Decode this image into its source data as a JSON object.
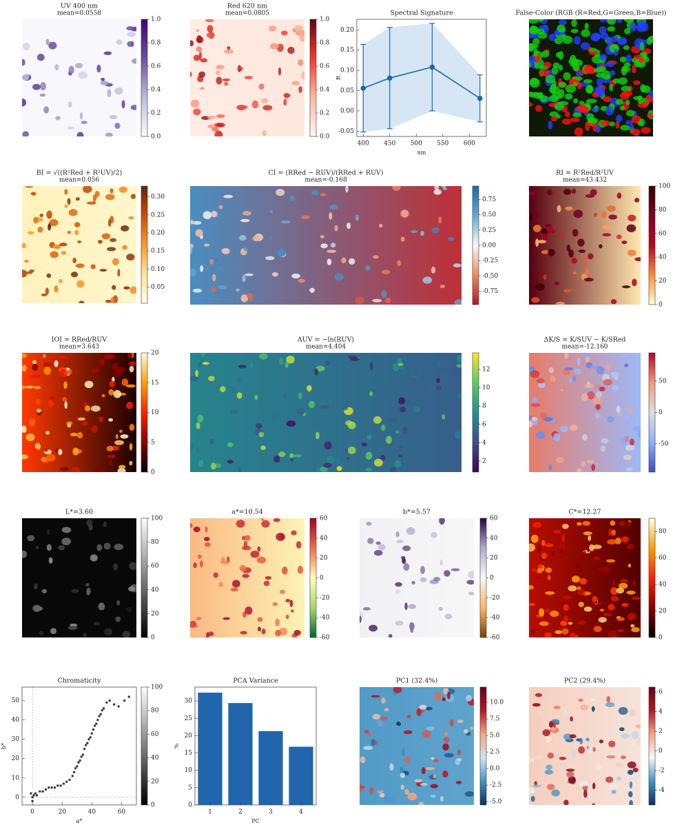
{
  "chart_data": [
    {
      "type": "heatmap",
      "title": "UV 400 nm",
      "subtitle": "mean=0.0558",
      "colormap": [
        "#fcfbfd",
        "#bcbddc",
        "#6a51a3",
        "#3f007d"
      ],
      "cbar_lim": [
        0,
        1
      ],
      "cbar_ticks": [
        {
          "value": 0,
          "label": "0.0"
        },
        0.2,
        0.4,
        0.6,
        0.8,
        {
          "value": 1,
          "label": "1.0"
        }
      ]
    },
    {
      "type": "heatmap",
      "title": "Red 620 nm",
      "subtitle": "mean=0.0805",
      "colormap": [
        "#fff5f0",
        "#fcbba1",
        "#ef3b2c",
        "#67000d"
      ],
      "cbar_lim": [
        0,
        1
      ],
      "cbar_ticks": [
        {
          "value": 0,
          "label": "0.0"
        },
        0.2,
        0.4,
        0.6,
        0.8,
        {
          "value": 1,
          "label": "1.0"
        }
      ]
    },
    {
      "type": "line",
      "title": "Spectral Signature",
      "x_label": "nm",
      "y_label": "R",
      "color": "#2166ac",
      "band_color": "#c6dbef",
      "x": [
        400,
        450,
        530,
        620
      ],
      "values": [
        0.056,
        0.081,
        0.108,
        0.031
      ],
      "errors": [
        0.108,
        0.125,
        0.108,
        0.058
      ],
      "xlim": [
        388,
        632
      ],
      "xticks": [
        400,
        450,
        500,
        550,
        600
      ],
      "ylim": [
        -0.063,
        0.226
      ],
      "yticks": [
        -0.05,
        {
          "value": 0,
          "label": "0.00"
        },
        0.05,
        {
          "value": 0.1,
          "label": "0.10"
        },
        0.15,
        {
          "value": 0.2,
          "label": "0.20"
        }
      ]
    },
    {
      "type": "rgb-image",
      "title": "False-Color (RGB (R=Red,G=Green,B=Blue))",
      "colors": [
        "#ff1010",
        "#10d010",
        "#2040ff"
      ]
    },
    {
      "type": "heatmap",
      "title": "BI = √((R²Red + R²UV)/2)",
      "subtitle": "mean=0.056",
      "colormap": [
        "#ffffe5",
        "#fee391",
        "#fe9929",
        "#cc4c02",
        "#662506"
      ],
      "cbar_lim": [
        0.005,
        0.33
      ],
      "cbar_ticks": [
        0.05,
        {
          "value": 0.1,
          "label": "0.10"
        },
        0.15,
        {
          "value": 0.2,
          "label": "0.20"
        },
        0.25,
        {
          "value": 0.3,
          "label": "0.30"
        }
      ]
    },
    {
      "type": "heatmap",
      "title": "CI = (RRed − RUV)/(RRed + RUV)",
      "subtitle": "mean=-0.168",
      "colormap": [
        "#b2182b",
        "#ef8a62",
        "#f7f7f7",
        "#67a9cf",
        "#2166ac"
      ],
      "cbar_lim": [
        -0.97,
        0.97
      ],
      "cbar_ticks": [
        -0.75,
        {
          "value": -0.5,
          "label": "-0.50"
        },
        -0.25,
        {
          "value": 0,
          "label": "0.00"
        },
        0.25,
        {
          "value": 0.5,
          "label": "0.50"
        },
        0.75
      ]
    },
    {
      "type": "heatmap",
      "title": "RI = R²Red/R²UV",
      "subtitle": "mean=43.432",
      "colormap": [
        "#ffffcc",
        "#fd8d3c",
        "#bd0026",
        "#800026",
        "#3a0000"
      ],
      "cbar_lim": [
        0,
        100
      ],
      "cbar_ticks": [
        0,
        20,
        40,
        60,
        80,
        100
      ]
    },
    {
      "type": "heatmap",
      "title": "IOI = RRed/RUV",
      "subtitle": "mean=3.643",
      "colormap": [
        "#000000",
        "#8b0000",
        "#ff2000",
        "#ffa000",
        "#ffffe0"
      ],
      "cbar_lim": [
        0,
        20
      ],
      "cbar_ticks": [
        0,
        5,
        10,
        15,
        20
      ]
    },
    {
      "type": "heatmap",
      "title": "AUV = −ln(RUV)",
      "subtitle": "mean=4.404",
      "colormap": [
        "#440154",
        "#3b528b",
        "#21918c",
        "#5ec962",
        "#fde725"
      ],
      "cbar_lim": [
        0.8,
        13.8
      ],
      "cbar_ticks": [
        2,
        4,
        6,
        8,
        10,
        12
      ]
    },
    {
      "type": "heatmap",
      "title": "ΔK/S = K/SUV − K/SRed",
      "subtitle": "mean=-12.160",
      "colormap": [
        "#3b4cc0",
        "#8db0fe",
        "#dddddd",
        "#f49a7b",
        "#b40426"
      ],
      "cbar_lim": [
        -95,
        95
      ],
      "cbar_ticks": [
        -50,
        0,
        50
      ]
    },
    {
      "type": "heatmap",
      "title": "L*=3.60",
      "colormap": [
        "#000000",
        "#808080",
        "#ffffff"
      ],
      "cbar_lim": [
        0,
        100
      ],
      "cbar_ticks": [
        0,
        20,
        40,
        60,
        80,
        100
      ]
    },
    {
      "type": "heatmap",
      "title": "a*=10.54",
      "colormap": [
        "#006837",
        "#a6d96a",
        "#ffffbf",
        "#f46d43",
        "#a50026"
      ],
      "cbar_lim": [
        -60,
        60
      ],
      "cbar_ticks": [
        -60,
        -40,
        -20,
        0,
        20,
        40,
        60
      ]
    },
    {
      "type": "heatmap",
      "title": "b*=5.57",
      "colormap": [
        "#7f3b08",
        "#fdb863",
        "#f7f7f7",
        "#b2abd2",
        "#2d004b"
      ],
      "cbar_lim": [
        -60,
        60
      ],
      "cbar_ticks": [
        -60,
        -40,
        -20,
        0,
        20,
        40,
        60
      ]
    },
    {
      "type": "heatmap",
      "title": "C*=12.27",
      "colormap": [
        "#000000",
        "#8b0000",
        "#ff2000",
        "#ffa000",
        "#ffffe0"
      ],
      "cbar_lim": [
        0,
        90
      ],
      "cbar_ticks": [
        0,
        20,
        40,
        60,
        80
      ]
    },
    {
      "type": "scatter",
      "title": "Chromaticity",
      "x_label": "a*",
      "y_label": "b*",
      "color": "#333333",
      "x": [
        -1,
        0,
        1,
        0,
        2,
        3,
        5,
        7,
        9,
        11,
        13,
        15,
        17,
        19,
        21,
        23,
        25,
        27,
        28,
        29,
        30,
        31,
        32,
        33,
        34,
        35,
        36,
        37,
        38,
        39,
        40,
        41,
        42,
        43,
        44,
        45,
        46,
        47,
        48,
        50,
        52,
        55,
        58,
        62,
        65
      ],
      "y": [
        2,
        0,
        1,
        -2,
        2,
        1,
        3,
        3,
        4,
        5,
        5,
        5,
        6,
        6,
        7,
        8,
        9,
        11,
        13,
        15,
        16,
        18,
        19,
        21,
        22,
        25,
        27,
        28,
        30,
        31,
        33,
        35,
        37,
        38,
        40,
        42,
        43,
        45,
        46,
        49,
        50,
        48,
        47,
        50,
        52
      ],
      "xlim": [
        -7,
        70
      ],
      "xticks": [
        0,
        20,
        40,
        60
      ],
      "ylim": [
        -4,
        57
      ],
      "yticks": [
        0,
        10,
        20,
        30,
        40,
        50
      ],
      "colormap": [
        "#000000",
        "#808080",
        "#ffffff"
      ],
      "cbar_lim": [
        0,
        100
      ],
      "cbar_ticks": [
        0,
        20,
        40,
        60,
        80,
        100
      ]
    },
    {
      "type": "bar",
      "title": "PCA Variance",
      "x_label": "PC",
      "y_label": "%",
      "color": "#2166ac",
      "categories": [
        "1",
        "2",
        "3",
        "4"
      ],
      "values": [
        32.4,
        29.4,
        21.3,
        16.8
      ],
      "ylim": [
        0,
        34
      ],
      "yticks": [
        0,
        5,
        10,
        15,
        20,
        25,
        30
      ]
    },
    {
      "type": "heatmap",
      "title": "PC1 (32.4%)",
      "colormap": [
        "#053061",
        "#4393c3",
        "#d1e5f0",
        "#f4a582",
        "#b2182b",
        "#67001f"
      ],
      "cbar_lim": [
        -5.5,
        12.3
      ],
      "cbar_ticks": [
        {
          "value": -5,
          "label": "-5.0"
        },
        -2.5,
        {
          "value": 0,
          "label": "0.0"
        },
        2.5,
        {
          "value": 5,
          "label": "5.0"
        },
        7.5,
        {
          "value": 10,
          "label": "10.0"
        }
      ]
    },
    {
      "type": "heatmap",
      "title": "PC2 (29.4%)",
      "colormap": [
        "#053061",
        "#4393c3",
        "#f7f7f7",
        "#f4a582",
        "#b2182b",
        "#67001f"
      ],
      "cbar_lim": [
        -5.5,
        6.5
      ],
      "cbar_ticks": [
        -4,
        -2,
        0,
        2,
        4,
        6
      ]
    }
  ]
}
